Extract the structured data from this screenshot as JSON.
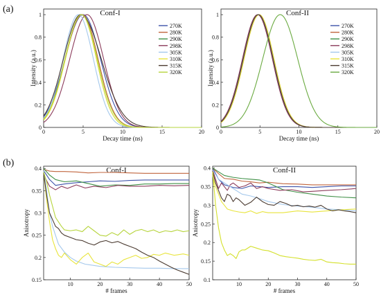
{
  "panel_labels": [
    "(a)",
    "(b)"
  ],
  "chart_data": [
    {
      "id": "a1",
      "type": "line",
      "title": "Conf-I",
      "xlabel": "Decay time (ns)",
      "ylabel": "Intensity (a.u.)",
      "xlim": [
        0,
        20
      ],
      "ylim": [
        0,
        1.05
      ],
      "xticks": [
        0,
        5,
        10,
        15,
        20
      ],
      "yticks": [
        0,
        0.2,
        0.4,
        0.6,
        0.8,
        1
      ],
      "ytick_labels": [
        "0",
        "0.2",
        "0.4",
        "0.6",
        "0.8",
        "1"
      ],
      "legend": "top-right",
      "series": [
        {
          "name": "270K",
          "color": "#3c52a8",
          "peak": 5.0,
          "width": 2.3,
          "tail": 2.2
        },
        {
          "name": "280K",
          "color": "#c0643c",
          "peak": 4.9,
          "width": 2.15,
          "tail": 2.0
        },
        {
          "name": "290K",
          "color": "#3e8f45",
          "peak": 4.8,
          "width": 2.1,
          "tail": 1.9
        },
        {
          "name": "298K",
          "color": "#8b3a5a",
          "peak": 5.5,
          "width": 2.2,
          "tail": 2.1
        },
        {
          "name": "305K",
          "color": "#a4c8ec",
          "peak": 4.4,
          "width": 1.95,
          "tail": 1.9
        },
        {
          "name": "310K",
          "color": "#e8e43a",
          "peak": 4.8,
          "width": 2.05,
          "tail": 1.9
        },
        {
          "name": "315K",
          "color": "#4a3a30",
          "peak": 4.7,
          "width": 2.2,
          "tail": 2.6
        },
        {
          "name": "320K",
          "color": "#b6d43c",
          "peak": 4.8,
          "width": 2.1,
          "tail": 2.0
        }
      ]
    },
    {
      "id": "a2",
      "type": "line",
      "title": "Conf-II",
      "xlabel": "Decay time (ns)",
      "ylabel": "Intensity (a.u.)",
      "xlim": [
        0,
        20
      ],
      "ylim": [
        0,
        1.05
      ],
      "xticks": [
        0,
        5,
        10,
        15,
        20
      ],
      "yticks": [
        0,
        0.2,
        0.4,
        0.6,
        0.8,
        1
      ],
      "ytick_labels": [
        "0",
        "0.2",
        "0.4",
        "0.6",
        "0.8",
        "1"
      ],
      "legend": "top-right",
      "series": [
        {
          "name": "270K",
          "color": "#3c52a8",
          "peak": 4.8,
          "width": 1.95,
          "tail": 1.9
        },
        {
          "name": "280K",
          "color": "#c0643c",
          "peak": 4.9,
          "width": 1.95,
          "tail": 1.9
        },
        {
          "name": "290K",
          "color": "#3e8f45",
          "peak": 4.8,
          "width": 1.95,
          "tail": 1.9
        },
        {
          "name": "298K",
          "color": "#8b3a5a",
          "peak": 4.7,
          "width": 1.95,
          "tail": 1.9
        },
        {
          "name": "305K",
          "color": "#a4c8ec",
          "peak": 4.8,
          "width": 1.95,
          "tail": 1.9
        },
        {
          "name": "310K",
          "color": "#e8e43a",
          "peak": 4.9,
          "width": 1.95,
          "tail": 1.9
        },
        {
          "name": "315K",
          "color": "#4a3a30",
          "peak": 4.8,
          "width": 1.95,
          "tail": 1.9
        },
        {
          "name": "320K",
          "color": "#6aaa40",
          "peak": 7.6,
          "width": 2.25,
          "tail": 2.25
        }
      ]
    },
    {
      "id": "b1",
      "type": "line",
      "title": "Conf-I",
      "xlabel": "# frames",
      "ylabel": "Anisotropy",
      "xlim": [
        1,
        50
      ],
      "ylim": [
        0.15,
        0.405
      ],
      "xticks": [
        10,
        20,
        30,
        40,
        50
      ],
      "yticks": [
        0.15,
        0.2,
        0.25,
        0.3,
        0.35,
        0.4
      ],
      "ytick_labels": [
        "0.15",
        "0.2",
        "0.25",
        "0.3",
        "0.35",
        "0.4"
      ],
      "series": [
        {
          "name": "270K",
          "color": "#3c52a8",
          "x": [
            1,
            3,
            5,
            8,
            12,
            16,
            20,
            25,
            30,
            35,
            40,
            45,
            50
          ],
          "y": [
            0.395,
            0.375,
            0.362,
            0.365,
            0.368,
            0.37,
            0.372,
            0.371,
            0.373,
            0.374,
            0.374,
            0.374,
            0.374
          ]
        },
        {
          "name": "280K",
          "color": "#c0643c",
          "x": [
            1,
            3,
            5,
            8,
            12,
            16,
            20,
            25,
            30,
            35,
            40,
            45,
            50
          ],
          "y": [
            0.398,
            0.394,
            0.393,
            0.393,
            0.392,
            0.39,
            0.391,
            0.391,
            0.39,
            0.389,
            0.389,
            0.389,
            0.389
          ]
        },
        {
          "name": "290K",
          "color": "#3e8f45",
          "x": [
            1,
            3,
            5,
            8,
            12,
            16,
            20,
            25,
            30,
            35,
            40,
            45,
            50
          ],
          "y": [
            0.4,
            0.385,
            0.375,
            0.37,
            0.372,
            0.366,
            0.36,
            0.363,
            0.362,
            0.365,
            0.365,
            0.366,
            0.366
          ]
        },
        {
          "name": "298K",
          "color": "#8b3a5a",
          "x": [
            1,
            3,
            5,
            7,
            9,
            12,
            15,
            18,
            22,
            26,
            30,
            35,
            40,
            45,
            50
          ],
          "y": [
            0.385,
            0.36,
            0.352,
            0.36,
            0.355,
            0.363,
            0.356,
            0.36,
            0.357,
            0.362,
            0.36,
            0.36,
            0.362,
            0.361,
            0.362
          ]
        },
        {
          "name": "305K",
          "color": "#a4c8ec",
          "x": [
            1,
            2,
            3,
            4,
            5,
            6,
            8,
            10,
            12,
            15,
            20,
            25,
            30,
            35,
            40,
            45,
            50
          ],
          "y": [
            0.395,
            0.35,
            0.3,
            0.27,
            0.25,
            0.23,
            0.212,
            0.2,
            0.192,
            0.185,
            0.18,
            0.178,
            0.177,
            0.176,
            0.176,
            0.175,
            0.175
          ]
        },
        {
          "name": "310K",
          "color": "#e8e43a",
          "x": [
            1,
            2,
            3,
            4,
            5,
            6,
            7,
            8,
            10,
            12,
            14,
            16,
            18,
            20,
            22,
            24,
            26,
            28,
            30,
            32,
            34,
            36,
            38,
            40,
            42,
            45,
            48,
            50
          ],
          "y": [
            0.39,
            0.33,
            0.28,
            0.24,
            0.22,
            0.205,
            0.2,
            0.21,
            0.195,
            0.185,
            0.2,
            0.21,
            0.19,
            0.185,
            0.18,
            0.19,
            0.185,
            0.195,
            0.2,
            0.205,
            0.198,
            0.2,
            0.207,
            0.205,
            0.21,
            0.205,
            0.208,
            0.205
          ]
        },
        {
          "name": "315K",
          "color": "#4a3a30",
          "x": [
            1,
            2,
            3,
            4,
            5,
            6,
            7,
            8,
            10,
            12,
            14,
            16,
            18,
            20,
            22,
            24,
            26,
            28,
            30,
            32,
            34,
            36,
            38,
            40,
            42,
            44,
            46,
            48,
            50
          ],
          "y": [
            0.39,
            0.34,
            0.3,
            0.285,
            0.27,
            0.265,
            0.255,
            0.25,
            0.245,
            0.24,
            0.238,
            0.232,
            0.228,
            0.235,
            0.238,
            0.233,
            0.236,
            0.23,
            0.225,
            0.22,
            0.212,
            0.205,
            0.2,
            0.192,
            0.185,
            0.178,
            0.172,
            0.167,
            0.162
          ]
        },
        {
          "name": "320K",
          "color": "#b6d43c",
          "x": [
            1,
            2,
            3,
            4,
            5,
            6,
            7,
            8,
            10,
            12,
            14,
            16,
            18,
            20,
            22,
            24,
            26,
            28,
            30,
            32,
            34,
            36,
            38,
            40,
            42,
            44,
            46,
            48,
            50
          ],
          "y": [
            0.392,
            0.37,
            0.34,
            0.315,
            0.29,
            0.28,
            0.27,
            0.262,
            0.26,
            0.262,
            0.258,
            0.27,
            0.26,
            0.25,
            0.248,
            0.256,
            0.25,
            0.262,
            0.252,
            0.26,
            0.263,
            0.258,
            0.262,
            0.256,
            0.26,
            0.258,
            0.262,
            0.258,
            0.26
          ]
        }
      ]
    },
    {
      "id": "b2",
      "type": "line",
      "title": "Conf-II",
      "xlabel": "# frames",
      "ylabel": "Anisotropy",
      "xlim": [
        1,
        50
      ],
      "ylim": [
        0.1,
        0.405
      ],
      "xticks": [
        10,
        20,
        30,
        40,
        50
      ],
      "yticks": [
        0.1,
        0.15,
        0.2,
        0.25,
        0.3,
        0.35,
        0.4
      ],
      "ytick_labels": [
        "0.1",
        "0.15",
        "0.2",
        "0.25",
        "0.3",
        "0.35",
        "0.4"
      ],
      "series": [
        {
          "name": "270K",
          "color": "#3c52a8",
          "x": [
            1,
            3,
            5,
            8,
            11,
            14,
            17,
            20,
            25,
            30,
            35,
            40,
            45,
            50
          ],
          "y": [
            0.4,
            0.37,
            0.355,
            0.348,
            0.345,
            0.352,
            0.35,
            0.348,
            0.35,
            0.35,
            0.348,
            0.35,
            0.352,
            0.352
          ]
        },
        {
          "name": "280K",
          "color": "#c0643c",
          "x": [
            1,
            3,
            5,
            8,
            11,
            14,
            17,
            20,
            25,
            30,
            35,
            40,
            45,
            50
          ],
          "y": [
            0.4,
            0.385,
            0.372,
            0.37,
            0.365,
            0.363,
            0.36,
            0.362,
            0.358,
            0.357,
            0.355,
            0.355,
            0.355,
            0.355
          ]
        },
        {
          "name": "290K",
          "color": "#3e8f45",
          "x": [
            1,
            3,
            5,
            8,
            11,
            14,
            17,
            20,
            25,
            30,
            35,
            40,
            45,
            50
          ],
          "y": [
            0.4,
            0.39,
            0.38,
            0.375,
            0.372,
            0.37,
            0.368,
            0.36,
            0.342,
            0.335,
            0.33,
            0.325,
            0.322,
            0.32
          ]
        },
        {
          "name": "298K",
          "color": "#8b3a5a",
          "x": [
            1,
            2,
            3,
            4,
            5,
            6,
            7,
            8,
            10,
            12,
            14,
            16,
            18,
            20,
            24,
            28,
            32,
            36,
            40,
            45,
            50
          ],
          "y": [
            0.395,
            0.37,
            0.345,
            0.36,
            0.35,
            0.34,
            0.355,
            0.36,
            0.348,
            0.352,
            0.36,
            0.345,
            0.35,
            0.345,
            0.34,
            0.342,
            0.336,
            0.338,
            0.34,
            0.342,
            0.345
          ]
        },
        {
          "name": "305K",
          "color": "#a4c8ec",
          "x": [
            1,
            3,
            5,
            8,
            11,
            14,
            17,
            20,
            25,
            30,
            35,
            40,
            45,
            50
          ],
          "y": [
            0.395,
            0.37,
            0.36,
            0.345,
            0.33,
            0.325,
            0.318,
            0.31,
            0.302,
            0.298,
            0.295,
            0.29,
            0.288,
            0.285
          ]
        },
        {
          "name": "310K",
          "color": "#e8e43a",
          "x": [
            1,
            2,
            3,
            4,
            5,
            6,
            8,
            10,
            12,
            14,
            16,
            18,
            20,
            25,
            30,
            35,
            40,
            45,
            50
          ],
          "y": [
            0.38,
            0.35,
            0.33,
            0.31,
            0.3,
            0.29,
            0.285,
            0.282,
            0.28,
            0.285,
            0.278,
            0.283,
            0.28,
            0.28,
            0.285,
            0.282,
            0.285,
            0.288,
            0.29
          ]
        },
        {
          "name": "315K",
          "color": "#4a3a30",
          "x": [
            1,
            2,
            3,
            4,
            5,
            6,
            7,
            8,
            9,
            10,
            12,
            14,
            16,
            18,
            20,
            22,
            24,
            26,
            28,
            30,
            32,
            34,
            36,
            38,
            40,
            42,
            44,
            46,
            48,
            50
          ],
          "y": [
            0.39,
            0.36,
            0.34,
            0.32,
            0.31,
            0.33,
            0.325,
            0.31,
            0.32,
            0.315,
            0.3,
            0.308,
            0.322,
            0.31,
            0.302,
            0.3,
            0.31,
            0.305,
            0.298,
            0.3,
            0.296,
            0.298,
            0.295,
            0.3,
            0.29,
            0.285,
            0.288,
            0.285,
            0.283,
            0.28
          ]
        },
        {
          "name": "320K",
          "color": "#d4e02a",
          "x": [
            1,
            2,
            3,
            4,
            5,
            6,
            7,
            8,
            9,
            10,
            11,
            12,
            14,
            16,
            18,
            20,
            22,
            24,
            26,
            28,
            30,
            32,
            34,
            36,
            38,
            40,
            42,
            44,
            46,
            48,
            50
          ],
          "y": [
            0.39,
            0.3,
            0.24,
            0.2,
            0.18,
            0.165,
            0.17,
            0.165,
            0.157,
            0.175,
            0.18,
            0.18,
            0.19,
            0.185,
            0.18,
            0.178,
            0.172,
            0.165,
            0.162,
            0.16,
            0.158,
            0.155,
            0.153,
            0.152,
            0.155,
            0.148,
            0.146,
            0.145,
            0.143,
            0.142,
            0.142
          ]
        }
      ]
    }
  ]
}
